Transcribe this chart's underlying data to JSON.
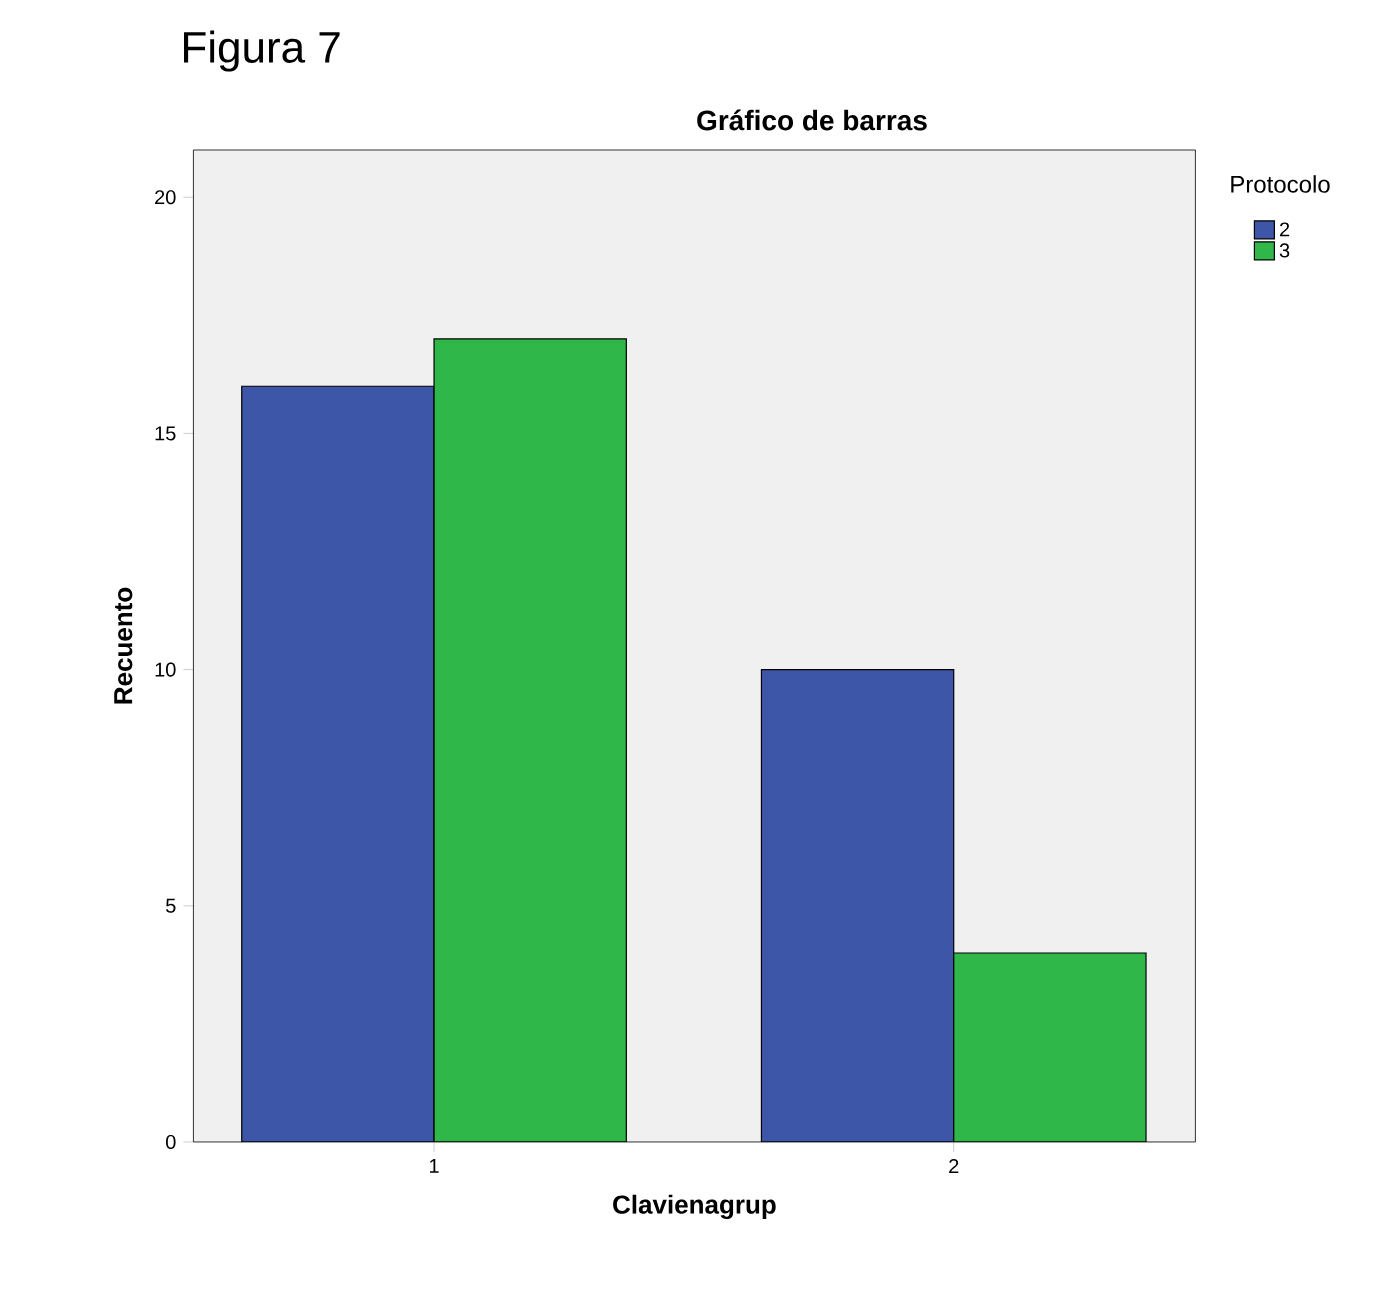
{
  "chart_data": {
    "type": "bar",
    "title": "Gráfico de barras",
    "xlabel": "Clavienagrup",
    "ylabel": "Recuento",
    "legend_title": "Protocolo",
    "annotations": [
      "Figura 7"
    ],
    "categories": [
      "1",
      "2"
    ],
    "series": [
      {
        "name": "2",
        "color": "#3e56a8",
        "values": [
          16,
          10
        ]
      },
      {
        "name": "3",
        "color": "#2fb74a",
        "values": [
          17,
          4
        ]
      }
    ],
    "ylim": [
      0,
      21
    ],
    "yticks": [
      0,
      5,
      10,
      15,
      20
    ],
    "grid": false,
    "legend": "top right"
  }
}
